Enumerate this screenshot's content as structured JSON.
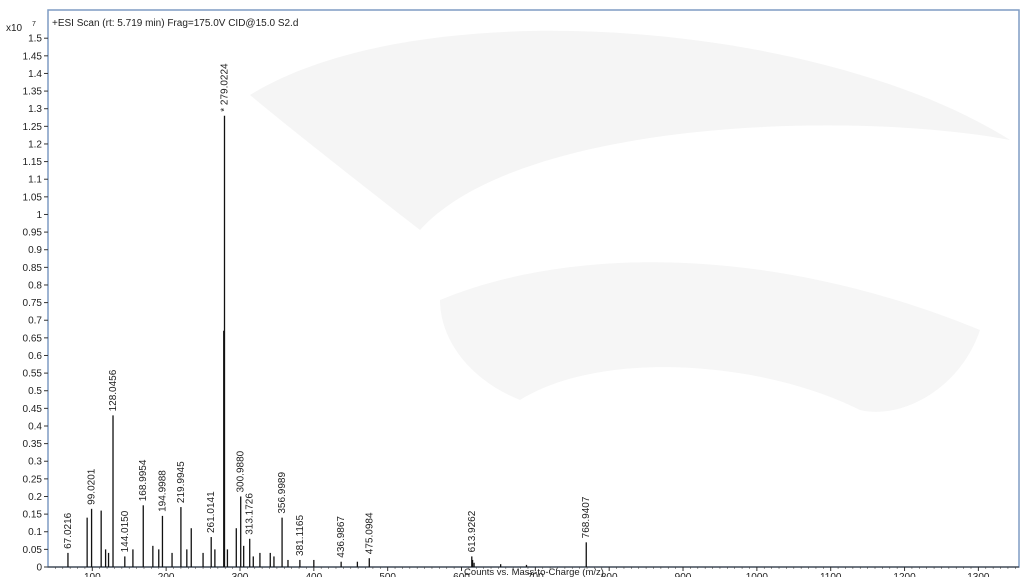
{
  "chart_data": {
    "type": "bar",
    "title": "+ESI Scan (rt: 5.719 min) Frag=175.0V CID@15.0 S2.d",
    "xlabel": "Counts vs. Mass-to-Charge (m/z)",
    "ylabel": "",
    "y_multiplier": "x10",
    "y_exponent": "7",
    "xlim": [
      40,
      1355
    ],
    "ylim": [
      0,
      1.58
    ],
    "x_ticks": [
      100,
      200,
      300,
      400,
      500,
      600,
      700,
      800,
      900,
      1000,
      1100,
      1200,
      1300
    ],
    "y_ticks": [
      0,
      0.05,
      0.1,
      0.15,
      0.2,
      0.25,
      0.3,
      0.35,
      0.4,
      0.45,
      0.5,
      0.55,
      0.6,
      0.65,
      0.7,
      0.75,
      0.8,
      0.85,
      0.9,
      0.95,
      1,
      1.05,
      1.1,
      1.15,
      1.2,
      1.25,
      1.3,
      1.35,
      1.4,
      1.45,
      1.5
    ],
    "labeled_peaks": [
      {
        "mz": 67.0216,
        "intensity": 0.04,
        "label": "67.0216"
      },
      {
        "mz": 99.0201,
        "intensity": 0.165,
        "label": "99.0201"
      },
      {
        "mz": 128.0456,
        "intensity": 0.43,
        "label": "128.0456"
      },
      {
        "mz": 144.015,
        "intensity": 0.03,
        "label": "144.0150"
      },
      {
        "mz": 168.9954,
        "intensity": 0.175,
        "label": "168.9954"
      },
      {
        "mz": 194.9988,
        "intensity": 0.145,
        "label": "194.9988"
      },
      {
        "mz": 219.9945,
        "intensity": 0.17,
        "label": "219.9945"
      },
      {
        "mz": 261.0141,
        "intensity": 0.085,
        "label": "261.0141"
      },
      {
        "mz": 279.0224,
        "intensity": 1.28,
        "label": "279.0224",
        "marker": "*"
      },
      {
        "mz": 300.988,
        "intensity": 0.2,
        "label": "300.9880"
      },
      {
        "mz": 313.1726,
        "intensity": 0.08,
        "label": "313.1726"
      },
      {
        "mz": 356.9989,
        "intensity": 0.14,
        "label": "356.9989"
      },
      {
        "mz": 381.1165,
        "intensity": 0.02,
        "label": "381.1165"
      },
      {
        "mz": 436.9867,
        "intensity": 0.015,
        "label": "436.9867"
      },
      {
        "mz": 475.0984,
        "intensity": 0.025,
        "label": "475.0984"
      },
      {
        "mz": 613.9262,
        "intensity": 0.03,
        "label": "613.9262"
      },
      {
        "mz": 768.9407,
        "intensity": 0.07,
        "label": "768.9407"
      }
    ],
    "unlabeled_peaks": [
      {
        "mz": 93,
        "intensity": 0.14
      },
      {
        "mz": 112,
        "intensity": 0.16
      },
      {
        "mz": 118,
        "intensity": 0.05
      },
      {
        "mz": 122,
        "intensity": 0.04
      },
      {
        "mz": 155,
        "intensity": 0.05
      },
      {
        "mz": 182,
        "intensity": 0.06
      },
      {
        "mz": 190,
        "intensity": 0.05
      },
      {
        "mz": 208,
        "intensity": 0.04
      },
      {
        "mz": 228,
        "intensity": 0.05
      },
      {
        "mz": 234,
        "intensity": 0.11
      },
      {
        "mz": 250,
        "intensity": 0.04
      },
      {
        "mz": 266,
        "intensity": 0.05
      },
      {
        "mz": 278,
        "intensity": 0.67
      },
      {
        "mz": 283,
        "intensity": 0.05
      },
      {
        "mz": 295,
        "intensity": 0.11
      },
      {
        "mz": 305,
        "intensity": 0.06
      },
      {
        "mz": 318,
        "intensity": 0.03
      },
      {
        "mz": 327,
        "intensity": 0.04
      },
      {
        "mz": 341,
        "intensity": 0.04
      },
      {
        "mz": 346,
        "intensity": 0.03
      },
      {
        "mz": 365,
        "intensity": 0.02
      },
      {
        "mz": 400,
        "intensity": 0.02
      },
      {
        "mz": 459,
        "intensity": 0.015
      },
      {
        "mz": 615,
        "intensity": 0.02
      },
      {
        "mz": 617,
        "intensity": 0.012
      },
      {
        "mz": 653,
        "intensity": 0.008
      },
      {
        "mz": 688,
        "intensity": 0.006
      }
    ],
    "grid": false,
    "legend": "none"
  }
}
